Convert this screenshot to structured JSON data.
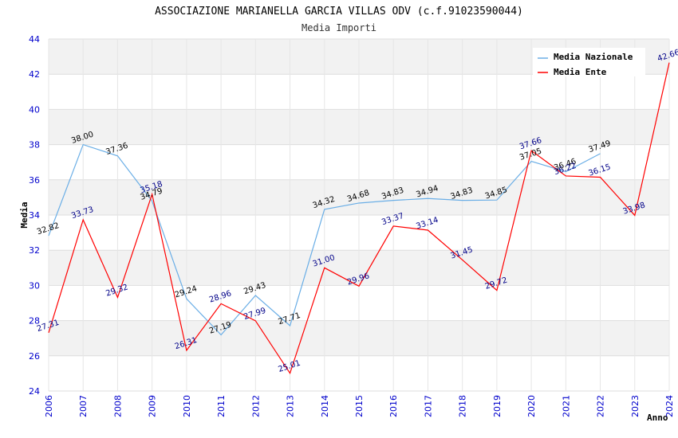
{
  "chart_data": {
    "type": "line",
    "title": "ASSOCIAZIONE MARIANELLA GARCIA VILLAS ODV (c.f.91023590044)",
    "subtitle": "Media Importi",
    "xlabel": "Anno",
    "ylabel": "Media",
    "ylim": [
      24,
      44
    ],
    "yticks": [
      24,
      26,
      28,
      30,
      32,
      34,
      36,
      38,
      40,
      42,
      44
    ],
    "categories": [
      "2006",
      "2007",
      "2008",
      "2009",
      "2010",
      "2011",
      "2012",
      "2013",
      "2014",
      "2015",
      "2016",
      "2017",
      "2018",
      "2019",
      "2020",
      "2021",
      "2022",
      "2023",
      "2024"
    ],
    "grid": true,
    "legend_position": "top-right",
    "series": [
      {
        "name": "Media Nazionale",
        "color": "#6aaee6",
        "label_color": "#000000",
        "values": [
          32.82,
          38.0,
          37.36,
          34.79,
          29.24,
          27.19,
          29.43,
          27.71,
          34.32,
          34.68,
          34.83,
          34.94,
          34.83,
          34.85,
          37.05,
          36.46,
          37.49,
          null,
          null
        ],
        "labels": [
          "32.82",
          "38.00",
          "37.36",
          "34.79",
          "29.24",
          "27.19",
          "29.43",
          "27.71",
          "34.32",
          "34.68",
          "34.83",
          "34.94",
          "34.83",
          "34.85",
          "37.05",
          "36.46",
          "37.49",
          "",
          ""
        ]
      },
      {
        "name": "Media Ente",
        "color": "#ff0000",
        "label_color": "#000088",
        "values": [
          27.31,
          33.73,
          29.32,
          35.18,
          26.31,
          28.96,
          27.99,
          25.01,
          31.0,
          29.96,
          33.37,
          33.14,
          31.45,
          29.72,
          37.66,
          36.22,
          36.15,
          33.98,
          42.66
        ],
        "labels": [
          "27.31",
          "33.73",
          "29.32",
          "35.18",
          "26.31",
          "28.96",
          "27.99",
          "25.01",
          "31.00",
          "29.96",
          "33.37",
          "33.14",
          "31.45",
          "29.72",
          "37.66",
          "36.22",
          "36.15",
          "33.98",
          "42.66"
        ]
      }
    ]
  }
}
